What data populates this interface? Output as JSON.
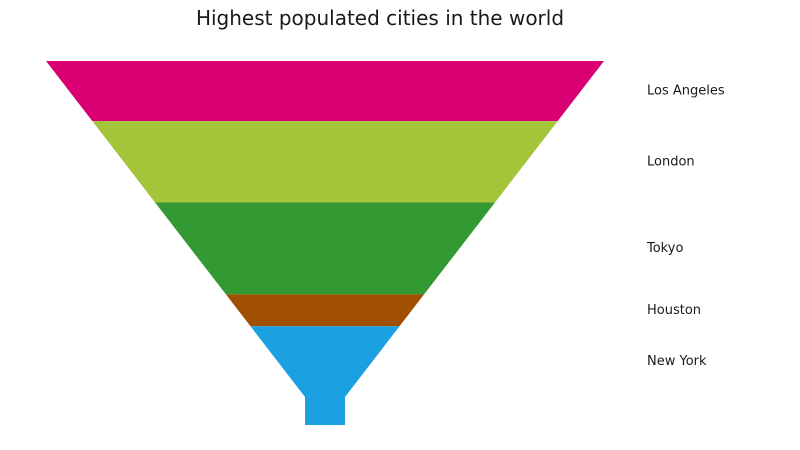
{
  "chart_data": {
    "type": "funnel",
    "title": "Highest populated cities in the world",
    "categories": [
      "Los Angeles",
      "London",
      "Tokyo",
      "Houston",
      "New York"
    ],
    "values": [
      17,
      23,
      26,
      9,
      20
    ],
    "colors": [
      "#d80073",
      "#a4c43a",
      "#339933",
      "#a05000",
      "#1ba1e2"
    ],
    "grid": false,
    "legend": "right"
  }
}
